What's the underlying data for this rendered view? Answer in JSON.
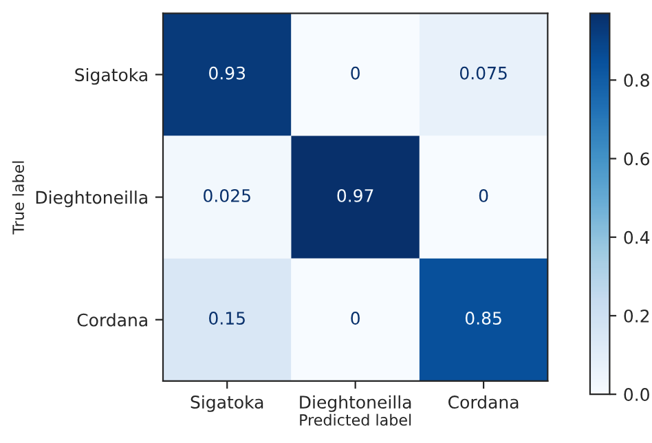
{
  "chart_data": {
    "type": "heatmap",
    "xlabel": "Predicted label",
    "ylabel": "True label",
    "categories": [
      "Sigatoka",
      "Dieghtoneilla",
      "Cordana"
    ],
    "y_categories": [
      "Sigatoka",
      "Dieghtoneilla",
      "Cordana"
    ],
    "cells": [
      [
        0.93,
        0,
        0.075
      ],
      [
        0.025,
        0.97,
        0
      ],
      [
        0.15,
        0,
        0.85
      ]
    ],
    "clim": [
      0,
      0.97
    ],
    "cticks": [
      {
        "value": 0,
        "label": "0.0"
      },
      0.2,
      0.4,
      0.6,
      0.8
    ],
    "data_labels": true,
    "grid": false
  }
}
